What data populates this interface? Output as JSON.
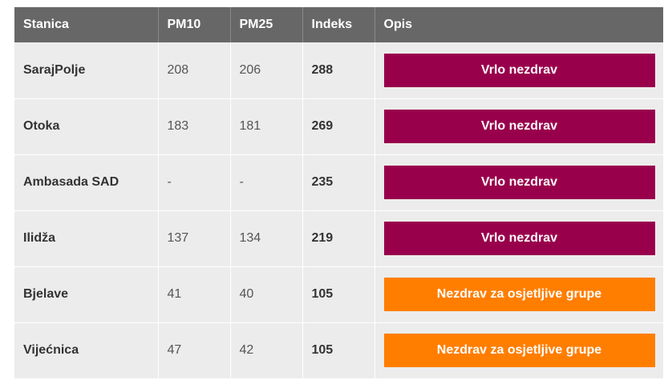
{
  "colors": {
    "header_bg": "#676767",
    "row_bg": "#ececec",
    "very_unhealthy": "#99004c",
    "unhealthy_sensitive": "#ff7e00"
  },
  "table": {
    "headers": [
      "Stanica",
      "PM10",
      "PM25",
      "Indeks",
      "Opis"
    ],
    "rows": [
      {
        "station": "SarajPolje",
        "pm10": "208",
        "pm25": "206",
        "index": "288",
        "description": "Vrlo nezdrav",
        "level": "very-unhealthy"
      },
      {
        "station": "Otoka",
        "pm10": "183",
        "pm25": "181",
        "index": "269",
        "description": "Vrlo nezdrav",
        "level": "very-unhealthy"
      },
      {
        "station": "Ambasada SAD",
        "pm10": "-",
        "pm25": "-",
        "index": "235",
        "description": "Vrlo nezdrav",
        "level": "very-unhealthy"
      },
      {
        "station": "Ilidža",
        "pm10": "137",
        "pm25": "134",
        "index": "219",
        "description": "Vrlo nezdrav",
        "level": "very-unhealthy"
      },
      {
        "station": "Bjelave",
        "pm10": "41",
        "pm25": "40",
        "index": "105",
        "description": "Nezdrav za osjetljive grupe",
        "level": "sensitive"
      },
      {
        "station": "Vijećnica",
        "pm10": "47",
        "pm25": "42",
        "index": "105",
        "description": "Nezdrav za osjetljive grupe",
        "level": "sensitive"
      }
    ]
  }
}
